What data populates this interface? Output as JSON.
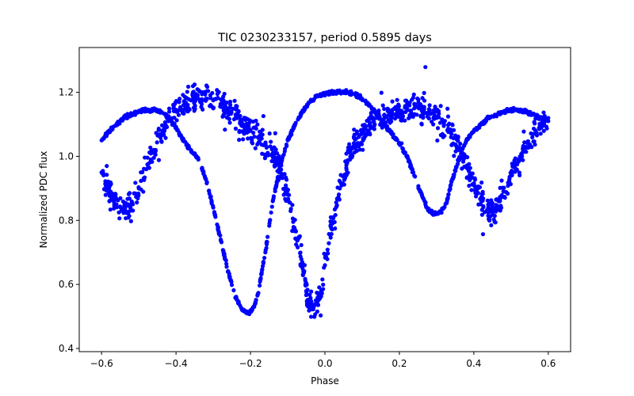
{
  "chart_data": {
    "type": "scatter",
    "title": "TIC 0230233157, period 0.5895 days",
    "xlabel": "Phase",
    "ylabel": "Normalized PDC flux",
    "xlim": [
      -0.66,
      0.66
    ],
    "ylim": [
      0.39,
      1.34
    ],
    "xticks": [
      -0.6,
      -0.4,
      -0.2,
      0.0,
      0.2,
      0.4,
      0.6
    ],
    "xtick_labels": [
      "−0.6",
      "−0.4",
      "−0.2",
      "0.0",
      "0.2",
      "0.4",
      "0.6"
    ],
    "yticks": [
      0.4,
      0.6,
      0.8,
      1.0,
      1.2
    ],
    "ytick_labels": [
      "0.4",
      "0.6",
      "0.8",
      "1.0",
      "1.2"
    ],
    "grid": false,
    "marker_color": "#0000ff",
    "series": [
      {
        "style": "smooth curve",
        "x": [
          -0.6,
          -0.58,
          -0.56,
          -0.54,
          -0.52,
          -0.5,
          -0.48,
          -0.46,
          -0.44,
          -0.42,
          -0.4,
          -0.38,
          -0.36,
          -0.34,
          -0.32,
          -0.3,
          -0.28,
          -0.26,
          -0.24,
          -0.22,
          -0.21,
          -0.2,
          -0.19,
          -0.18,
          -0.16,
          -0.14,
          -0.12,
          -0.1,
          -0.08,
          -0.06,
          -0.04,
          -0.02,
          0.0,
          0.02,
          0.04,
          0.06,
          0.08,
          0.1,
          0.12,
          0.14,
          0.16,
          0.18,
          0.2,
          0.22,
          0.24,
          0.26,
          0.27,
          0.28,
          0.29,
          0.3,
          0.31,
          0.32,
          0.33,
          0.34,
          0.36,
          0.38,
          0.4,
          0.42,
          0.44,
          0.46,
          0.48,
          0.5,
          0.52,
          0.54,
          0.56,
          0.58,
          0.6
        ],
        "y": [
          1.05,
          1.08,
          1.1,
          1.12,
          1.13,
          1.14,
          1.145,
          1.145,
          1.14,
          1.12,
          1.09,
          1.05,
          1.02,
          0.99,
          0.93,
          0.84,
          0.74,
          0.64,
          0.56,
          0.52,
          0.512,
          0.515,
          0.53,
          0.57,
          0.7,
          0.86,
          0.97,
          1.05,
          1.1,
          1.14,
          1.17,
          1.19,
          1.195,
          1.2,
          1.2,
          1.2,
          1.195,
          1.18,
          1.16,
          1.13,
          1.1,
          1.07,
          1.04,
          1.0,
          0.94,
          0.88,
          0.85,
          0.83,
          0.82,
          0.82,
          0.825,
          0.84,
          0.87,
          0.92,
          0.99,
          1.05,
          1.08,
          1.1,
          1.12,
          1.13,
          1.14,
          1.145,
          1.145,
          1.14,
          1.13,
          1.12,
          1.11
        ]
      },
      {
        "style": "noisy scattered",
        "x": [
          -0.6,
          -0.58,
          -0.56,
          -0.54,
          -0.52,
          -0.5,
          -0.48,
          -0.46,
          -0.44,
          -0.42,
          -0.4,
          -0.38,
          -0.36,
          -0.34,
          -0.32,
          -0.3,
          -0.28,
          -0.26,
          -0.24,
          -0.22,
          -0.2,
          -0.18,
          -0.16,
          -0.14,
          -0.12,
          -0.1,
          -0.08,
          -0.06,
          -0.05,
          -0.04,
          -0.03,
          -0.02,
          -0.01,
          0.0,
          0.02,
          0.04,
          0.06,
          0.08,
          0.1,
          0.12,
          0.14,
          0.16,
          0.18,
          0.2,
          0.22,
          0.24,
          0.26,
          0.28,
          0.3,
          0.32,
          0.34,
          0.36,
          0.38,
          0.4,
          0.42,
          0.44,
          0.45,
          0.46,
          0.47,
          0.48,
          0.5,
          0.52,
          0.54,
          0.56,
          0.58,
          0.6
        ],
        "y": [
          0.95,
          0.9,
          0.85,
          0.83,
          0.85,
          0.9,
          0.96,
          1.02,
          1.07,
          1.11,
          1.14,
          1.16,
          1.175,
          1.18,
          1.18,
          1.175,
          1.16,
          1.15,
          1.13,
          1.1,
          1.08,
          1.06,
          1.04,
          1.01,
          0.96,
          0.88,
          0.77,
          0.65,
          0.58,
          0.54,
          0.53,
          0.54,
          0.58,
          0.66,
          0.79,
          0.9,
          0.98,
          1.03,
          1.07,
          1.1,
          1.12,
          1.13,
          1.14,
          1.145,
          1.15,
          1.15,
          1.145,
          1.14,
          1.12,
          1.1,
          1.07,
          1.02,
          0.97,
          0.91,
          0.86,
          0.83,
          0.83,
          0.84,
          0.86,
          0.89,
          0.94,
          0.99,
          1.03,
          1.07,
          1.1,
          1.12
        ]
      }
    ]
  }
}
